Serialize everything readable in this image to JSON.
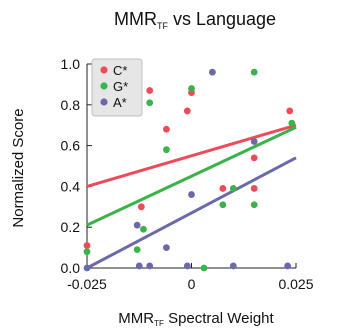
{
  "chart_data": {
    "type": "scatter",
    "title": {
      "main": "MMR",
      "sub": "TF",
      "rest": " vs Language"
    },
    "xlabel": {
      "main": "MMR",
      "sub": "TF",
      "rest": " Spectral Weight"
    },
    "ylabel": "Normalized Score",
    "xlim": [
      -0.025,
      0.025
    ],
    "ylim": [
      0,
      1.0
    ],
    "xticks": [
      {
        "value": -0.025,
        "label": "-0.025"
      },
      {
        "value": 0,
        "label": "0"
      },
      {
        "value": 0.025,
        "label": "0.025"
      }
    ],
    "yticks": [
      {
        "value": 0,
        "label": "0.0"
      },
      {
        "value": 0.2,
        "label": "0.2"
      },
      {
        "value": 0.4,
        "label": "0.4"
      },
      {
        "value": 0.6,
        "label": "0.6"
      },
      {
        "value": 0.8,
        "label": "0.8"
      },
      {
        "value": 1.0,
        "label": "1.0"
      }
    ],
    "grid": false,
    "legend_position": "top-left",
    "series": [
      {
        "name": "C*",
        "color": "#ef4a5a",
        "points": [
          {
            "x": -0.025,
            "y": 0.11
          },
          {
            "x": -0.012,
            "y": 0.3
          },
          {
            "x": -0.01,
            "y": 0.87
          },
          {
            "x": -0.006,
            "y": 0.68
          },
          {
            "x": -0.001,
            "y": 0.77
          },
          {
            "x": 0.0,
            "y": 0.86
          },
          {
            "x": 0.0075,
            "y": 0.39
          },
          {
            "x": 0.015,
            "y": 0.54
          },
          {
            "x": 0.015,
            "y": 0.39
          },
          {
            "x": 0.0235,
            "y": 0.77
          }
        ],
        "fit": [
          {
            "x": -0.025,
            "y": 0.4
          },
          {
            "x": 0.025,
            "y": 0.7
          }
        ]
      },
      {
        "name": "G*",
        "color": "#3bb34a",
        "points": [
          {
            "x": -0.025,
            "y": 0.08
          },
          {
            "x": -0.013,
            "y": 0.09
          },
          {
            "x": -0.0115,
            "y": 0.19
          },
          {
            "x": -0.01,
            "y": 0.81
          },
          {
            "x": -0.006,
            "y": 0.58
          },
          {
            "x": 0.0,
            "y": 0.88
          },
          {
            "x": 0.003,
            "y": 0.0
          },
          {
            "x": 0.0075,
            "y": 0.31
          },
          {
            "x": 0.01,
            "y": 0.39
          },
          {
            "x": 0.015,
            "y": 0.96
          },
          {
            "x": 0.015,
            "y": 0.31
          },
          {
            "x": 0.024,
            "y": 0.71
          }
        ],
        "fit": [
          {
            "x": -0.025,
            "y": 0.21
          },
          {
            "x": 0.025,
            "y": 0.69
          }
        ]
      },
      {
        "name": "A*",
        "color": "#6a6aaa",
        "points": [
          {
            "x": -0.025,
            "y": 0.0
          },
          {
            "x": -0.013,
            "y": 0.21
          },
          {
            "x": -0.0125,
            "y": 0.01
          },
          {
            "x": -0.01,
            "y": 0.01
          },
          {
            "x": -0.006,
            "y": 0.1
          },
          {
            "x": -0.001,
            "y": 0.01
          },
          {
            "x": 0.0,
            "y": 0.36
          },
          {
            "x": 0.005,
            "y": 0.96
          },
          {
            "x": 0.01,
            "y": 0.01
          },
          {
            "x": 0.015,
            "y": 0.62
          },
          {
            "x": 0.023,
            "y": 0.01
          }
        ],
        "fit": [
          {
            "x": -0.025,
            "y": 0.0
          },
          {
            "x": 0.025,
            "y": 0.54
          }
        ]
      }
    ]
  }
}
